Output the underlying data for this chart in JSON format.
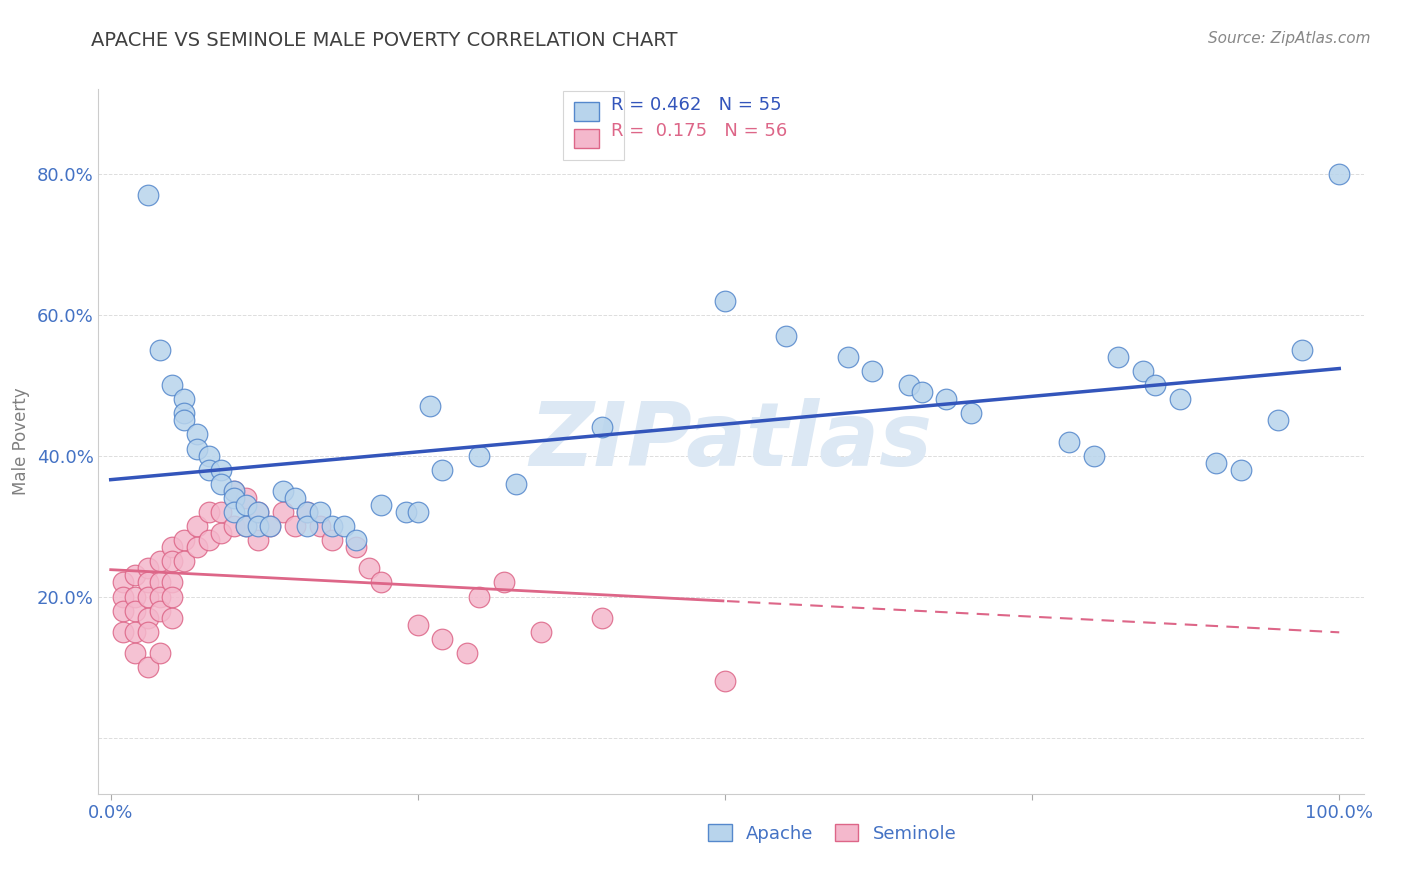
{
  "title": "APACHE VS SEMINOLE MALE POVERTY CORRELATION CHART",
  "source": "Source: ZipAtlas.com",
  "ylabel": "Male Poverty",
  "xlim": [
    -0.01,
    1.02
  ],
  "ylim": [
    -0.08,
    0.92
  ],
  "xticks": [
    0.0,
    0.25,
    0.5,
    0.75,
    1.0
  ],
  "xtick_labels": [
    "0.0%",
    "",
    "",
    "",
    "100.0%"
  ],
  "yticks": [
    0.0,
    0.2,
    0.4,
    0.6,
    0.8
  ],
  "ytick_labels": [
    "",
    "20.0%",
    "40.0%",
    "60.0%",
    "80.0%"
  ],
  "apache_face": "#b8d4ec",
  "apache_edge": "#5588cc",
  "seminole_face": "#f4b8cc",
  "seminole_edge": "#dd6688",
  "apache_line": "#3355bb",
  "seminole_line": "#dd6688",
  "apache_R": 0.462,
  "apache_N": 55,
  "seminole_R": 0.175,
  "seminole_N": 56,
  "apache_x": [
    0.03,
    0.04,
    0.05,
    0.06,
    0.06,
    0.06,
    0.07,
    0.07,
    0.08,
    0.08,
    0.09,
    0.09,
    0.1,
    0.1,
    0.1,
    0.11,
    0.11,
    0.12,
    0.12,
    0.13,
    0.14,
    0.15,
    0.16,
    0.16,
    0.17,
    0.18,
    0.19,
    0.2,
    0.22,
    0.24,
    0.25,
    0.26,
    0.27,
    0.3,
    0.33,
    0.4,
    0.5,
    0.55,
    0.6,
    0.62,
    0.65,
    0.66,
    0.68,
    0.7,
    0.78,
    0.8,
    0.82,
    0.84,
    0.85,
    0.87,
    0.9,
    0.92,
    0.95,
    0.97,
    1.0
  ],
  "apache_y": [
    0.77,
    0.55,
    0.5,
    0.48,
    0.46,
    0.45,
    0.43,
    0.41,
    0.4,
    0.38,
    0.38,
    0.36,
    0.35,
    0.34,
    0.32,
    0.33,
    0.3,
    0.32,
    0.3,
    0.3,
    0.35,
    0.34,
    0.32,
    0.3,
    0.32,
    0.3,
    0.3,
    0.28,
    0.33,
    0.32,
    0.32,
    0.47,
    0.38,
    0.4,
    0.36,
    0.44,
    0.62,
    0.57,
    0.54,
    0.52,
    0.5,
    0.49,
    0.48,
    0.46,
    0.42,
    0.4,
    0.54,
    0.52,
    0.5,
    0.48,
    0.39,
    0.38,
    0.45,
    0.55,
    0.8
  ],
  "seminole_x": [
    0.01,
    0.01,
    0.01,
    0.01,
    0.02,
    0.02,
    0.02,
    0.02,
    0.02,
    0.03,
    0.03,
    0.03,
    0.03,
    0.03,
    0.03,
    0.04,
    0.04,
    0.04,
    0.04,
    0.04,
    0.05,
    0.05,
    0.05,
    0.05,
    0.05,
    0.06,
    0.06,
    0.07,
    0.07,
    0.08,
    0.08,
    0.09,
    0.09,
    0.1,
    0.1,
    0.11,
    0.11,
    0.12,
    0.12,
    0.13,
    0.14,
    0.15,
    0.16,
    0.17,
    0.18,
    0.2,
    0.21,
    0.22,
    0.25,
    0.27,
    0.29,
    0.3,
    0.32,
    0.35,
    0.4,
    0.5
  ],
  "seminole_y": [
    0.22,
    0.2,
    0.18,
    0.15,
    0.23,
    0.2,
    0.18,
    0.15,
    0.12,
    0.24,
    0.22,
    0.2,
    0.17,
    0.15,
    0.1,
    0.25,
    0.22,
    0.2,
    0.18,
    0.12,
    0.27,
    0.25,
    0.22,
    0.2,
    0.17,
    0.28,
    0.25,
    0.3,
    0.27,
    0.32,
    0.28,
    0.32,
    0.29,
    0.35,
    0.3,
    0.34,
    0.3,
    0.32,
    0.28,
    0.3,
    0.32,
    0.3,
    0.32,
    0.3,
    0.28,
    0.27,
    0.24,
    0.22,
    0.16,
    0.14,
    0.12,
    0.2,
    0.22,
    0.15,
    0.17,
    0.08
  ],
  "title_color": "#404040",
  "source_color": "#888888",
  "tick_color": "#4472c4",
  "grid_color": "#dddddd",
  "watermark": "ZIPatlas",
  "watermark_color": "#dce8f4"
}
